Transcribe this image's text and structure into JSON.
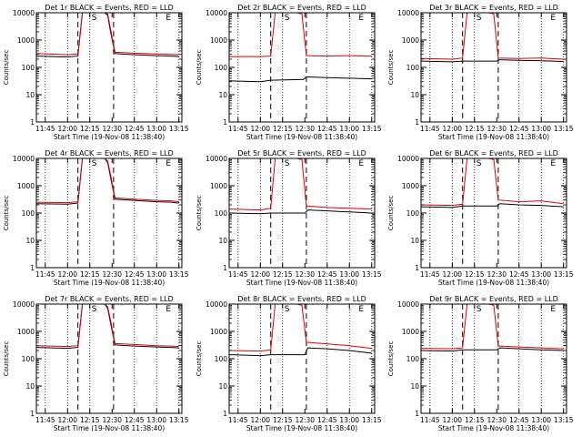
{
  "colors": {
    "events": "#000000",
    "lld": "#dd0000",
    "axis": "#000000"
  },
  "chart_data": [
    {
      "type": "line",
      "title": "Det 1r BLACK = Events, RED = LLD",
      "xlabel": "Start Time (19-Nov-08 11:38:40)",
      "ylabel": "Counts/sec",
      "xlim": [
        "11:39",
        "13:17"
      ],
      "ylim": [
        1,
        10000
      ],
      "yscale": "log",
      "xticks": [
        "11:45",
        "12:00",
        "12:15",
        "12:30",
        "12:45",
        "13:00",
        "13:15"
      ],
      "yticks": [
        "1",
        "10",
        "100",
        "1000",
        "10000"
      ],
      "markers": [
        "S",
        "E"
      ],
      "series": [
        {
          "x": [
            "11:39",
            "12:00",
            "12:07",
            "12:10",
            "12:15",
            "12:20",
            "12:25",
            "12:27",
            "12:29",
            "12:32",
            "12:45",
            "13:00",
            "13:10",
            "13:15"
          ],
          "values": [
            260,
            240,
            260,
            10000,
            10000,
            10000,
            10000,
            8000,
            2000,
            320,
            290,
            270,
            260,
            250
          ]
        },
        {
          "x": [
            "11:39",
            "12:00",
            "12:07",
            "12:10",
            "12:15",
            "12:20",
            "12:25",
            "12:27",
            "12:29",
            "12:32",
            "12:45",
            "13:00",
            "13:10",
            "13:15"
          ],
          "values": [
            320,
            290,
            310,
            10000,
            10000,
            10000,
            10000,
            9000,
            2500,
            360,
            330,
            310,
            300,
            290
          ]
        }
      ]
    },
    {
      "type": "line",
      "title": "Det 2r BLACK = Events, RED = LLD",
      "xlabel": "Start Time (19-Nov-08 11:38:40)",
      "ylabel": "Counts/sec",
      "xlim": [
        "11:39",
        "13:17"
      ],
      "ylim": [
        1,
        10000
      ],
      "yscale": "log",
      "xticks": [
        "11:45",
        "12:00",
        "12:15",
        "12:30",
        "12:45",
        "13:00",
        "13:15"
      ],
      "yticks": [
        "1",
        "10",
        "100",
        "1000",
        "10000"
      ],
      "markers": [
        "S",
        "E"
      ],
      "series": [
        {
          "x": [
            "11:39",
            "12:00",
            "12:07",
            "12:29",
            "12:31",
            "12:45",
            "13:00",
            "13:15"
          ],
          "values": [
            32,
            30,
            34,
            36,
            45,
            42,
            40,
            38
          ]
        },
        {
          "x": [
            "11:39",
            "12:00",
            "12:07",
            "12:10",
            "12:15",
            "12:20",
            "12:25",
            "12:28",
            "12:31",
            "12:45",
            "13:00",
            "13:15"
          ],
          "values": [
            250,
            250,
            260,
            10000,
            10000,
            10000,
            10000,
            9000,
            270,
            260,
            270,
            260
          ]
        }
      ]
    },
    {
      "type": "line",
      "title": "Det 3r BLACK = Events, RED = LLD",
      "xlabel": "Start Time (19-Nov-08 11:38:40)",
      "ylabel": "Counts/sec",
      "xlim": [
        "11:39",
        "13:17"
      ],
      "ylim": [
        1,
        10000
      ],
      "yscale": "log",
      "xticks": [
        "11:45",
        "12:00",
        "12:15",
        "12:30",
        "12:45",
        "13:00",
        "13:15"
      ],
      "yticks": [
        "1",
        "10",
        "100",
        "1000",
        "10000"
      ],
      "markers": [
        "S",
        "E"
      ],
      "series": [
        {
          "x": [
            "11:39",
            "12:00",
            "12:07",
            "12:30",
            "12:32",
            "12:45",
            "13:00",
            "13:15"
          ],
          "values": [
            170,
            160,
            170,
            170,
            190,
            180,
            175,
            165
          ]
        },
        {
          "x": [
            "11:39",
            "12:00",
            "12:07",
            "12:10",
            "12:15",
            "12:20",
            "12:25",
            "12:28",
            "12:31",
            "12:45",
            "13:00",
            "13:15"
          ],
          "values": [
            210,
            200,
            220,
            10000,
            10000,
            10000,
            10000,
            9000,
            220,
            210,
            220,
            200
          ]
        }
      ]
    },
    {
      "type": "line",
      "title": "Det 4r BLACK = Events, RED = LLD",
      "xlabel": "Start Time (19-Nov-08 11:38:40)",
      "ylabel": "Counts/sec",
      "xlim": [
        "11:39",
        "13:17"
      ],
      "ylim": [
        1,
        10000
      ],
      "yscale": "log",
      "xticks": [
        "11:45",
        "12:00",
        "12:15",
        "12:30",
        "12:45",
        "13:00",
        "13:15"
      ],
      "yticks": [
        "1",
        "10",
        "100",
        "1000",
        "10000"
      ],
      "markers": [
        "S",
        "E"
      ],
      "series": [
        {
          "x": [
            "11:39",
            "12:00",
            "12:07",
            "12:10",
            "12:15",
            "12:20",
            "12:25",
            "12:27",
            "12:29",
            "12:32",
            "12:45",
            "13:00",
            "13:10",
            "13:15"
          ],
          "values": [
            220,
            210,
            230,
            10000,
            10000,
            10000,
            10000,
            7000,
            2000,
            320,
            290,
            260,
            250,
            230
          ]
        },
        {
          "x": [
            "11:39",
            "12:00",
            "12:07",
            "12:10",
            "12:15",
            "12:20",
            "12:25",
            "12:27",
            "12:29",
            "12:32",
            "12:45",
            "13:00",
            "13:10",
            "13:15"
          ],
          "values": [
            250,
            240,
            260,
            10000,
            10000,
            10000,
            10000,
            8000,
            2500,
            360,
            320,
            290,
            280,
            260
          ]
        }
      ]
    },
    {
      "type": "line",
      "title": "Det 5r BLACK = Events, RED = LLD",
      "xlabel": "Start Time (19-Nov-08 11:38:40)",
      "ylabel": "Counts/sec",
      "xlim": [
        "11:39",
        "13:17"
      ],
      "ylim": [
        1,
        10000
      ],
      "yscale": "log",
      "xticks": [
        "11:45",
        "12:00",
        "12:15",
        "12:30",
        "12:45",
        "13:00",
        "13:15"
      ],
      "yticks": [
        "1",
        "10",
        "100",
        "1000",
        "10000"
      ],
      "markers": [
        "S",
        "E"
      ],
      "series": [
        {
          "x": [
            "11:39",
            "12:00",
            "12:07",
            "12:30",
            "12:32",
            "12:45",
            "13:00",
            "13:15"
          ],
          "values": [
            100,
            95,
            100,
            100,
            130,
            120,
            110,
            100
          ]
        },
        {
          "x": [
            "11:39",
            "12:00",
            "12:07",
            "12:10",
            "12:15",
            "12:20",
            "12:25",
            "12:28",
            "12:31",
            "12:45",
            "13:00",
            "13:15"
          ],
          "values": [
            140,
            130,
            150,
            10000,
            10000,
            10000,
            10000,
            9000,
            180,
            160,
            150,
            140
          ]
        }
      ]
    },
    {
      "type": "line",
      "title": "Det 6r BLACK = Events, RED = LLD",
      "xlabel": "Start Time (19-Nov-08 11:38:40)",
      "ylabel": "Counts/sec",
      "xlim": [
        "11:39",
        "13:17"
      ],
      "ylim": [
        1,
        10000
      ],
      "yscale": "log",
      "xticks": [
        "11:45",
        "12:00",
        "12:15",
        "12:30",
        "12:45",
        "13:00",
        "13:15"
      ],
      "yticks": [
        "1",
        "10",
        "100",
        "1000",
        "10000"
      ],
      "markers": [
        "S",
        "E"
      ],
      "series": [
        {
          "x": [
            "11:39",
            "12:00",
            "12:07",
            "12:30",
            "12:32",
            "12:45",
            "13:00",
            "13:15"
          ],
          "values": [
            170,
            160,
            180,
            180,
            220,
            200,
            190,
            170
          ]
        },
        {
          "x": [
            "11:39",
            "12:00",
            "12:07",
            "12:10",
            "12:15",
            "12:20",
            "12:25",
            "12:28",
            "12:31",
            "12:45",
            "13:00",
            "13:15"
          ],
          "values": [
            200,
            190,
            210,
            10000,
            10000,
            10000,
            10000,
            9000,
            300,
            260,
            280,
            220
          ]
        }
      ]
    },
    {
      "type": "line",
      "title": "Det 7r BLACK = Events, RED = LLD",
      "xlabel": "Start Time (19-Nov-08 11:38:40)",
      "ylabel": "Counts/sec",
      "xlim": [
        "11:39",
        "13:17"
      ],
      "ylim": [
        1,
        10000
      ],
      "yscale": "log",
      "xticks": [
        "11:45",
        "12:00",
        "12:15",
        "12:30",
        "12:45",
        "13:00",
        "13:15"
      ],
      "yticks": [
        "1",
        "10",
        "100",
        "1000",
        "10000"
      ],
      "markers": [
        "S",
        "E"
      ],
      "series": [
        {
          "x": [
            "11:39",
            "12:00",
            "12:07",
            "12:10",
            "12:15",
            "12:20",
            "12:25",
            "12:27",
            "12:29",
            "12:32",
            "12:45",
            "13:00",
            "13:10",
            "13:15"
          ],
          "values": [
            260,
            240,
            260,
            10000,
            10000,
            10000,
            10000,
            7000,
            2000,
            320,
            290,
            270,
            260,
            250
          ]
        },
        {
          "x": [
            "11:39",
            "12:00",
            "12:07",
            "12:10",
            "12:15",
            "12:20",
            "12:25",
            "12:27",
            "12:29",
            "12:32",
            "12:45",
            "13:00",
            "13:10",
            "13:15"
          ],
          "values": [
            300,
            280,
            300,
            10000,
            10000,
            10000,
            10000,
            8000,
            2500,
            360,
            330,
            300,
            290,
            280
          ]
        }
      ]
    },
    {
      "type": "line",
      "title": "Det 8r BLACK = Events, RED = LLD",
      "xlabel": "Start Time (19-Nov-08 11:38:40)",
      "ylabel": "Counts/sec",
      "xlim": [
        "11:39",
        "13:17"
      ],
      "ylim": [
        1,
        10000
      ],
      "yscale": "log",
      "xticks": [
        "11:45",
        "12:00",
        "12:15",
        "12:30",
        "12:45",
        "13:00",
        "13:15"
      ],
      "yticks": [
        "1",
        "10",
        "100",
        "1000",
        "10000"
      ],
      "markers": [
        "S",
        "E"
      ],
      "series": [
        {
          "x": [
            "11:39",
            "12:00",
            "12:07",
            "12:30",
            "12:32",
            "12:45",
            "13:00",
            "13:15"
          ],
          "values": [
            140,
            130,
            140,
            140,
            250,
            230,
            200,
            160
          ]
        },
        {
          "x": [
            "11:39",
            "12:00",
            "12:07",
            "12:10",
            "12:15",
            "12:20",
            "12:25",
            "12:28",
            "12:31",
            "12:45",
            "13:00",
            "13:15"
          ],
          "values": [
            200,
            190,
            210,
            10000,
            10000,
            10000,
            10000,
            9000,
            400,
            350,
            300,
            240
          ]
        }
      ]
    },
    {
      "type": "line",
      "title": "Det 9r BLACK = Events, RED = LLD",
      "xlabel": "Start Time (19-Nov-08 11:38:40)",
      "ylabel": "Counts/sec",
      "xlim": [
        "11:39",
        "13:17"
      ],
      "ylim": [
        1,
        10000
      ],
      "yscale": "log",
      "xticks": [
        "11:45",
        "12:00",
        "12:15",
        "12:30",
        "12:45",
        "13:00",
        "13:15"
      ],
      "yticks": [
        "1",
        "10",
        "100",
        "1000",
        "10000"
      ],
      "markers": [
        "S",
        "E"
      ],
      "series": [
        {
          "x": [
            "11:39",
            "12:00",
            "12:07",
            "12:30",
            "12:32",
            "12:45",
            "13:00",
            "13:15"
          ],
          "values": [
            200,
            190,
            210,
            210,
            250,
            230,
            210,
            200
          ]
        },
        {
          "x": [
            "11:39",
            "12:00",
            "12:07",
            "12:10",
            "12:15",
            "12:20",
            "12:25",
            "12:28",
            "12:31",
            "12:45",
            "13:00",
            "13:15"
          ],
          "values": [
            240,
            230,
            250,
            10000,
            10000,
            10000,
            10000,
            9000,
            290,
            270,
            250,
            230
          ]
        }
      ]
    }
  ]
}
